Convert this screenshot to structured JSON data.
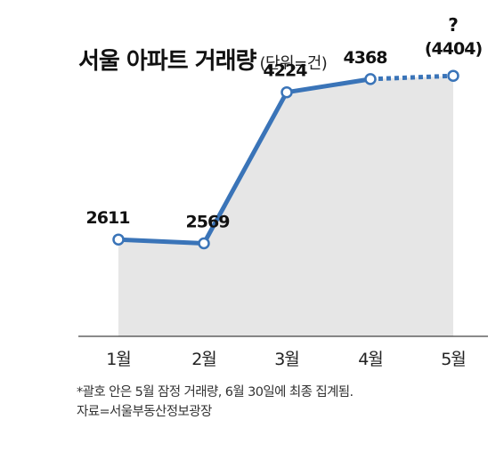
{
  "title": "서울 아파트 거래량",
  "unit": "(단위=건)",
  "footnote": "*괄호 안은 5월 잠정 거래량, 6월 30일에 최종 집계됨.",
  "source": "자료=서울부동산정보광장",
  "chart_data": {
    "type": "line",
    "title": "서울 아파트 거래량",
    "unit": "(단위=건)",
    "categories": [
      "1월",
      "2월",
      "3월",
      "4월",
      "5월"
    ],
    "values": [
      2611,
      2569,
      4224,
      4368,
      4404
    ],
    "labels": [
      "2611",
      "2569",
      "4224",
      "4368",
      "(4404)"
    ],
    "provisional_marker": "?",
    "provisional_index": 4,
    "ylim": [
      1550,
      4650
    ],
    "grid": false,
    "colors": {
      "line": "#3a74b8",
      "area": "#e6e6e6",
      "marker_fill": "#ffffff",
      "axis": "#444444"
    }
  }
}
